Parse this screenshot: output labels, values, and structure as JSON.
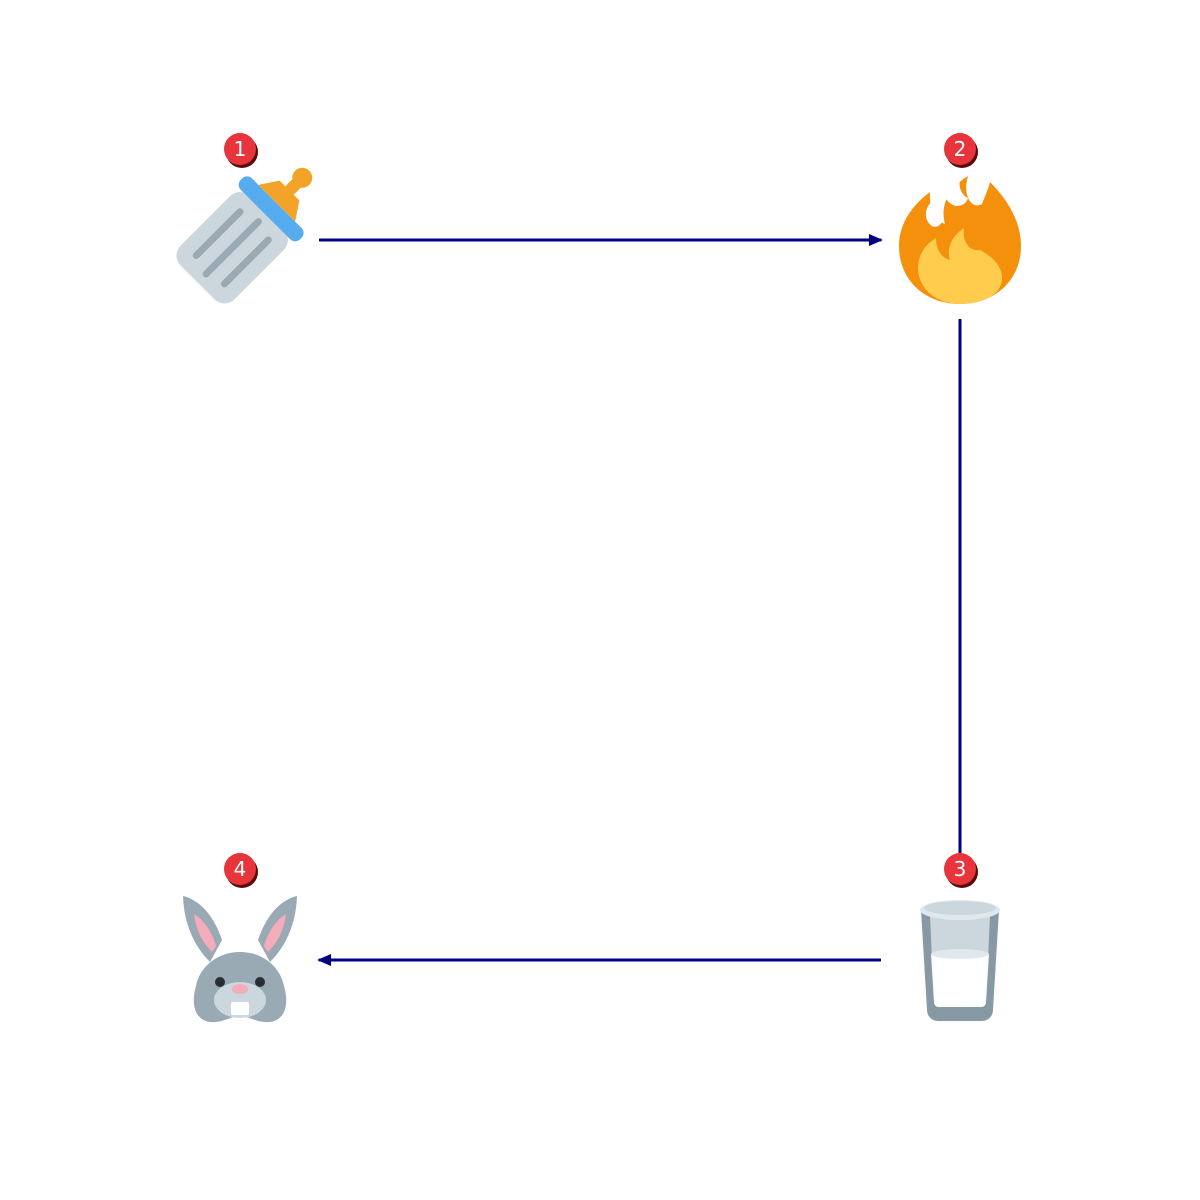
{
  "steps": [
    {
      "number": "1",
      "icon": "baby-bottle-icon"
    },
    {
      "number": "2",
      "icon": "fire-icon"
    },
    {
      "number": "3",
      "icon": "glass-of-milk-icon"
    },
    {
      "number": "4",
      "icon": "rabbit-face-icon"
    }
  ],
  "connections": [
    {
      "from": "1",
      "to": "2"
    },
    {
      "from": "2",
      "to": "3"
    },
    {
      "from": "3",
      "to": "4"
    }
  ],
  "colors": {
    "arrow": "#000080",
    "badge_fill": "#e8353b",
    "badge_shadow": "#5a0a0a",
    "badge_text": "#ffffff"
  }
}
